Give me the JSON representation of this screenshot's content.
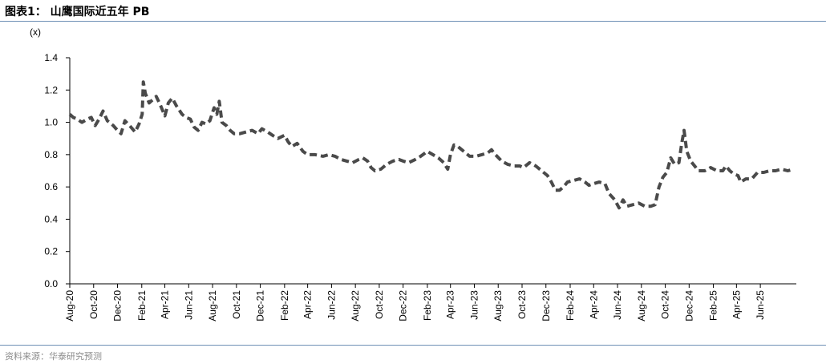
{
  "header": {
    "title": "图表1：  山鹰国际近五年 PB"
  },
  "footer": {
    "source": "资料来源：华泰研究预测"
  },
  "chart_data": {
    "type": "line",
    "title": "图表1：  山鹰国际近五年 PB",
    "unit_label": "(x)",
    "ylabel": "",
    "xlabel": "",
    "ylim": [
      0,
      1.4
    ],
    "y_ticks": [
      "0.0",
      "0.2",
      "0.4",
      "0.6",
      "0.8",
      "1.0",
      "1.2",
      "1.4"
    ],
    "x_range": [
      "2020-08",
      "2025-09"
    ],
    "x_ticks": [
      "Aug-20",
      "Oct-20",
      "Dec-20",
      "Feb-21",
      "Apr-21",
      "Jun-21",
      "Aug-21",
      "Oct-21",
      "Dec-21",
      "Feb-22",
      "Apr-22",
      "Jun-22",
      "Aug-22",
      "Oct-22",
      "Dec-22",
      "Feb-23",
      "Apr-23",
      "Jun-23",
      "Aug-23",
      "Oct-23",
      "Dec-23",
      "Feb-24",
      "Apr-24",
      "Jun-24",
      "Aug-24",
      "Oct-24",
      "Dec-24",
      "Feb-25",
      "Apr-25",
      "Jun-25"
    ],
    "line_style": "dashed",
    "line_color": "#4a4a4a",
    "grid": false,
    "series": [
      {
        "values": [
          [
            "2020-08-01",
            1.05
          ],
          [
            "2020-08-10",
            1.03
          ],
          [
            "2020-08-20",
            1.02
          ],
          [
            "2020-09-01",
            1.0
          ],
          [
            "2020-09-15",
            1.02
          ],
          [
            "2020-09-25",
            1.03
          ],
          [
            "2020-10-05",
            0.98
          ],
          [
            "2020-10-15",
            1.02
          ],
          [
            "2020-10-25",
            1.07
          ],
          [
            "2020-11-05",
            1.01
          ],
          [
            "2020-11-20",
            0.98
          ],
          [
            "2020-12-01",
            0.95
          ],
          [
            "2020-12-10",
            0.93
          ],
          [
            "2020-12-20",
            1.01
          ],
          [
            "2021-01-01",
            0.98
          ],
          [
            "2021-01-15",
            0.94
          ],
          [
            "2021-01-25",
            0.99
          ],
          [
            "2021-02-02",
            1.05
          ],
          [
            "2021-02-05",
            1.25
          ],
          [
            "2021-02-10",
            1.18
          ],
          [
            "2021-02-20",
            1.12
          ],
          [
            "2021-03-01",
            1.14
          ],
          [
            "2021-03-10",
            1.16
          ],
          [
            "2021-03-20",
            1.11
          ],
          [
            "2021-04-01",
            1.04
          ],
          [
            "2021-04-10",
            1.12
          ],
          [
            "2021-04-20",
            1.15
          ],
          [
            "2021-05-01",
            1.1
          ],
          [
            "2021-05-15",
            1.05
          ],
          [
            "2021-05-25",
            1.03
          ],
          [
            "2021-06-05",
            1.02
          ],
          [
            "2021-06-15",
            0.97
          ],
          [
            "2021-06-25",
            0.95
          ],
          [
            "2021-07-05",
            1.0
          ],
          [
            "2021-07-15",
            0.99
          ],
          [
            "2021-07-25",
            1.01
          ],
          [
            "2021-08-05",
            1.09
          ],
          [
            "2021-08-12",
            1.05
          ],
          [
            "2021-08-18",
            1.13
          ],
          [
            "2021-08-25",
            1.0
          ],
          [
            "2021-09-05",
            0.98
          ],
          [
            "2021-09-15",
            0.95
          ],
          [
            "2021-09-25",
            0.93
          ],
          [
            "2021-10-10",
            0.93
          ],
          [
            "2021-10-25",
            0.94
          ],
          [
            "2021-11-10",
            0.95
          ],
          [
            "2021-11-25",
            0.93
          ],
          [
            "2021-12-05",
            0.96
          ],
          [
            "2021-12-20",
            0.94
          ],
          [
            "2022-01-01",
            0.92
          ],
          [
            "2022-01-15",
            0.9
          ],
          [
            "2022-02-01",
            0.92
          ],
          [
            "2022-02-10",
            0.88
          ],
          [
            "2022-02-20",
            0.85
          ],
          [
            "2022-03-05",
            0.87
          ],
          [
            "2022-03-20",
            0.82
          ],
          [
            "2022-04-01",
            0.8
          ],
          [
            "2022-04-20",
            0.8
          ],
          [
            "2022-05-10",
            0.79
          ],
          [
            "2022-05-25",
            0.8
          ],
          [
            "2022-06-10",
            0.79
          ],
          [
            "2022-06-25",
            0.77
          ],
          [
            "2022-07-10",
            0.76
          ],
          [
            "2022-07-25",
            0.75
          ],
          [
            "2022-08-10",
            0.77
          ],
          [
            "2022-08-20",
            0.78
          ],
          [
            "2022-09-01",
            0.76
          ],
          [
            "2022-09-10",
            0.72
          ],
          [
            "2022-09-20",
            0.7
          ],
          [
            "2022-10-05",
            0.71
          ],
          [
            "2022-10-20",
            0.74
          ],
          [
            "2022-11-05",
            0.76
          ],
          [
            "2022-11-20",
            0.77
          ],
          [
            "2022-12-01",
            0.76
          ],
          [
            "2022-12-15",
            0.75
          ],
          [
            "2023-01-01",
            0.77
          ],
          [
            "2023-01-15",
            0.79
          ],
          [
            "2023-02-01",
            0.82
          ],
          [
            "2023-02-15",
            0.8
          ],
          [
            "2023-03-01",
            0.78
          ],
          [
            "2023-03-15",
            0.75
          ],
          [
            "2023-03-25",
            0.71
          ],
          [
            "2023-04-01",
            0.8
          ],
          [
            "2023-04-10",
            0.86
          ],
          [
            "2023-04-20",
            0.85
          ],
          [
            "2023-05-05",
            0.82
          ],
          [
            "2023-05-20",
            0.79
          ],
          [
            "2023-06-05",
            0.79
          ],
          [
            "2023-06-20",
            0.8
          ],
          [
            "2023-07-05",
            0.81
          ],
          [
            "2023-07-15",
            0.83
          ],
          [
            "2023-07-25",
            0.8
          ],
          [
            "2023-08-10",
            0.76
          ],
          [
            "2023-08-25",
            0.74
          ],
          [
            "2023-09-10",
            0.73
          ],
          [
            "2023-09-25",
            0.73
          ],
          [
            "2023-10-05",
            0.72
          ],
          [
            "2023-10-20",
            0.75
          ],
          [
            "2023-11-05",
            0.73
          ],
          [
            "2023-11-20",
            0.7
          ],
          [
            "2023-12-05",
            0.67
          ],
          [
            "2023-12-15",
            0.63
          ],
          [
            "2023-12-25",
            0.58
          ],
          [
            "2024-01-05",
            0.58
          ],
          [
            "2024-01-15",
            0.6
          ],
          [
            "2024-01-25",
            0.63
          ],
          [
            "2024-02-10",
            0.64
          ],
          [
            "2024-02-25",
            0.65
          ],
          [
            "2024-03-10",
            0.63
          ],
          [
            "2024-03-20",
            0.61
          ],
          [
            "2024-04-01",
            0.62
          ],
          [
            "2024-04-15",
            0.63
          ],
          [
            "2024-04-30",
            0.62
          ],
          [
            "2024-05-10",
            0.56
          ],
          [
            "2024-05-25",
            0.52
          ],
          [
            "2024-06-05",
            0.47
          ],
          [
            "2024-06-15",
            0.52
          ],
          [
            "2024-06-25",
            0.48
          ],
          [
            "2024-07-10",
            0.49
          ],
          [
            "2024-07-25",
            0.5
          ],
          [
            "2024-08-10",
            0.48
          ],
          [
            "2024-08-25",
            0.48
          ],
          [
            "2024-09-05",
            0.49
          ],
          [
            "2024-09-15",
            0.6
          ],
          [
            "2024-09-25",
            0.66
          ],
          [
            "2024-10-05",
            0.69
          ],
          [
            "2024-10-15",
            0.78
          ],
          [
            "2024-10-25",
            0.74
          ],
          [
            "2024-11-05",
            0.75
          ],
          [
            "2024-11-12",
            0.87
          ],
          [
            "2024-11-18",
            0.95
          ],
          [
            "2024-11-25",
            0.82
          ],
          [
            "2024-12-05",
            0.76
          ],
          [
            "2024-12-15",
            0.73
          ],
          [
            "2024-12-25",
            0.7
          ],
          [
            "2025-01-10",
            0.7
          ],
          [
            "2025-01-25",
            0.72
          ],
          [
            "2025-02-10",
            0.7
          ],
          [
            "2025-02-25",
            0.7
          ],
          [
            "2025-03-05",
            0.73
          ],
          [
            "2025-03-15",
            0.7
          ],
          [
            "2025-03-25",
            0.68
          ],
          [
            "2025-04-05",
            0.67
          ],
          [
            "2025-04-12",
            0.63
          ],
          [
            "2025-04-25",
            0.65
          ],
          [
            "2025-05-10",
            0.65
          ],
          [
            "2025-05-25",
            0.69
          ],
          [
            "2025-06-10",
            0.69
          ],
          [
            "2025-06-25",
            0.7
          ],
          [
            "2025-07-10",
            0.7
          ],
          [
            "2025-07-25",
            0.71
          ],
          [
            "2025-08-10",
            0.7
          ],
          [
            "2025-08-25",
            0.71
          ]
        ]
      }
    ]
  }
}
